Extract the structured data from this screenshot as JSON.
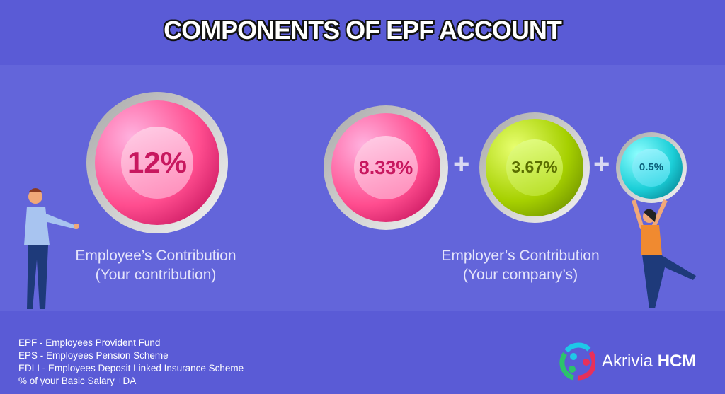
{
  "title": "COMPONENTS OF EPF ACCOUNT",
  "employee": {
    "value": "12%",
    "caption_line1": "Employee’s Contribution",
    "caption_line2": "(Your contribution)"
  },
  "employer": {
    "components": [
      {
        "value": "8.33%",
        "color": "pink"
      },
      {
        "value": "3.67%",
        "color": "green"
      },
      {
        "value": "0.5%",
        "color": "teal"
      }
    ],
    "plus": "+",
    "caption_line1": "Employer’s Contribution",
    "caption_line2": "(Your company’s)"
  },
  "notes": [
    "EPF - Employees Provident Fund",
    "EPS - Employees Pension Scheme",
    "EDLI - Employees Deposit Linked Insurance Scheme",
    "% of your Basic Salary +DA"
  ],
  "brand": {
    "name": "Akrivia",
    "suffix": "HCM"
  },
  "colors": {
    "background": "#5a5bd6",
    "panel": "#6365da",
    "pink": "#ff4d8f",
    "green": "#a6d000",
    "teal": "#1ccfd8"
  }
}
